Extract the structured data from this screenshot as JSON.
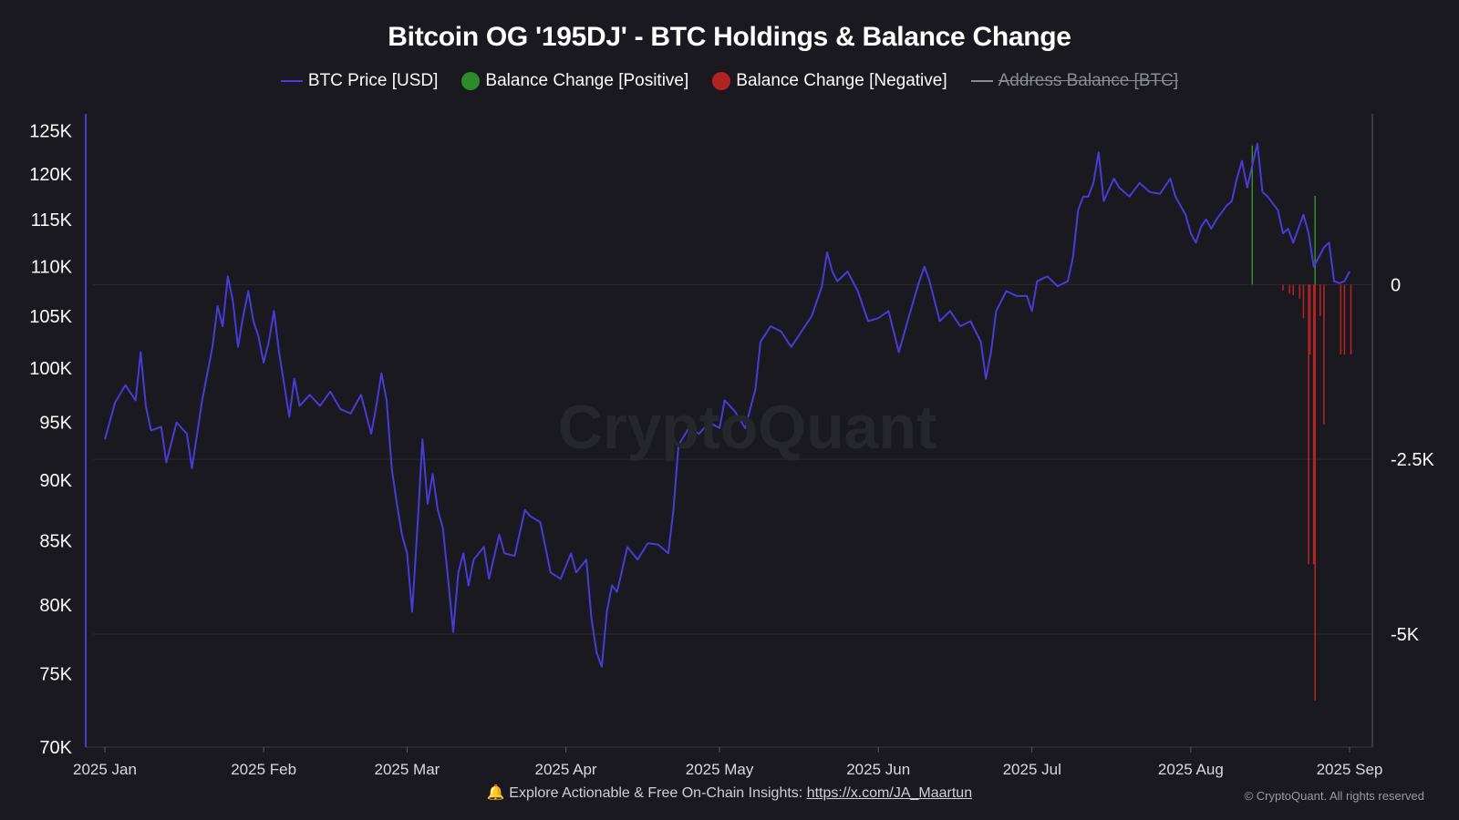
{
  "title": "Bitcoin OG '195DJ' - BTC Holdings & Balance Change",
  "legend": [
    {
      "label": "BTC Price [USD]",
      "marker": "line",
      "color": "#4a3bd6",
      "enabled": true
    },
    {
      "label": "Balance Change [Positive]",
      "marker": "dot",
      "color": "#2f8a2a",
      "enabled": true
    },
    {
      "label": "Balance Change [Negative]",
      "marker": "dot",
      "color": "#b22424",
      "enabled": true
    },
    {
      "label": "Address Balance [BTC]",
      "marker": "line",
      "color": "#8a8a93",
      "enabled": false
    }
  ],
  "watermark": "CryptoQuant",
  "footer": {
    "icon": "bell-icon",
    "text": "Explore Actionable & Free On-Chain Insights:",
    "link": "https://x.com/JA_Maartun"
  },
  "copyright": "© CryptoQuant. All rights reserved",
  "chart_data": {
    "type": "line",
    "left_axis": {
      "scale": "log",
      "range": [
        70000,
        127000
      ],
      "ticks": [
        70000,
        75000,
        80000,
        85000,
        90000,
        95000,
        100000,
        105000,
        110000,
        115000,
        120000,
        125000
      ],
      "tick_labels": [
        "70K",
        "75K",
        "80K",
        "85K",
        "90K",
        "95K",
        "100K",
        "105K",
        "110K",
        "115K",
        "120K",
        "125K"
      ]
    },
    "right_axis": {
      "range": [
        -6200,
        2000
      ],
      "ticks": [
        0,
        -2500,
        -5000
      ],
      "tick_labels": [
        "0",
        "-2.5K",
        "-5K"
      ]
    },
    "x_axis": {
      "range": [
        "2025-01-01",
        "2025-09-01"
      ],
      "ticks": [
        "2025-01-01",
        "2025-02-01",
        "2025-03-01",
        "2025-04-01",
        "2025-05-01",
        "2025-06-01",
        "2025-07-01",
        "2025-08-01",
        "2025-09-01"
      ],
      "tick_labels": [
        "2025 Jan",
        "2025 Feb",
        "2025 Mar",
        "2025 Apr",
        "2025 May",
        "2025 Jun",
        "2025 Jul",
        "2025 Aug",
        "2025 Sep"
      ]
    },
    "grid": true,
    "series": [
      {
        "name": "BTC Price [USD]",
        "axis": "left",
        "color": "#4a3bd6",
        "points": [
          [
            "2025-01-01",
            93500
          ],
          [
            "2025-01-03",
            96800
          ],
          [
            "2025-01-05",
            98400
          ],
          [
            "2025-01-07",
            97000
          ],
          [
            "2025-01-08",
            101500
          ],
          [
            "2025-01-09",
            96500
          ],
          [
            "2025-01-10",
            94300
          ],
          [
            "2025-01-12",
            94600
          ],
          [
            "2025-01-13",
            91500
          ],
          [
            "2025-01-15",
            95000
          ],
          [
            "2025-01-17",
            94000
          ],
          [
            "2025-01-18",
            91000
          ],
          [
            "2025-01-20",
            97000
          ],
          [
            "2025-01-22",
            102000
          ],
          [
            "2025-01-23",
            106000
          ],
          [
            "2025-01-24",
            104000
          ],
          [
            "2025-01-25",
            109000
          ],
          [
            "2025-01-26",
            106500
          ],
          [
            "2025-01-27",
            102000
          ],
          [
            "2025-01-28",
            105000
          ],
          [
            "2025-01-29",
            107500
          ],
          [
            "2025-01-30",
            104500
          ],
          [
            "2025-01-31",
            103000
          ],
          [
            "2025-02-01",
            100500
          ],
          [
            "2025-02-02",
            102500
          ],
          [
            "2025-02-03",
            105500
          ],
          [
            "2025-02-04",
            101500
          ],
          [
            "2025-02-05",
            98500
          ],
          [
            "2025-02-06",
            95500
          ],
          [
            "2025-02-07",
            99000
          ],
          [
            "2025-02-08",
            96500
          ],
          [
            "2025-02-10",
            97500
          ],
          [
            "2025-02-12",
            96500
          ],
          [
            "2025-02-14",
            97800
          ],
          [
            "2025-02-16",
            96200
          ],
          [
            "2025-02-18",
            95800
          ],
          [
            "2025-02-20",
            97500
          ],
          [
            "2025-02-22",
            94000
          ],
          [
            "2025-02-23",
            96500
          ],
          [
            "2025-02-24",
            99500
          ],
          [
            "2025-02-25",
            97000
          ],
          [
            "2025-02-26",
            91000
          ],
          [
            "2025-02-27",
            88000
          ],
          [
            "2025-02-28",
            85500
          ],
          [
            "2025-03-01",
            84000
          ],
          [
            "2025-03-02",
            79500
          ],
          [
            "2025-03-03",
            86000
          ],
          [
            "2025-03-04",
            93500
          ],
          [
            "2025-03-05",
            88000
          ],
          [
            "2025-03-06",
            90500
          ],
          [
            "2025-03-07",
            87500
          ],
          [
            "2025-03-08",
            86000
          ],
          [
            "2025-03-09",
            82000
          ],
          [
            "2025-03-10",
            78000
          ],
          [
            "2025-03-11",
            82500
          ],
          [
            "2025-03-12",
            84000
          ],
          [
            "2025-03-13",
            81500
          ],
          [
            "2025-03-14",
            83500
          ],
          [
            "2025-03-16",
            84500
          ],
          [
            "2025-03-17",
            82000
          ],
          [
            "2025-03-19",
            85500
          ],
          [
            "2025-03-20",
            84000
          ],
          [
            "2025-03-22",
            83800
          ],
          [
            "2025-03-24",
            87500
          ],
          [
            "2025-03-25",
            87000
          ],
          [
            "2025-03-27",
            86500
          ],
          [
            "2025-03-28",
            84500
          ],
          [
            "2025-03-29",
            82500
          ],
          [
            "2025-03-31",
            82000
          ],
          [
            "2025-04-02",
            84000
          ],
          [
            "2025-04-03",
            82500
          ],
          [
            "2025-04-05",
            83500
          ],
          [
            "2025-04-06",
            79000
          ],
          [
            "2025-04-07",
            76500
          ],
          [
            "2025-04-08",
            75500
          ],
          [
            "2025-04-09",
            79500
          ],
          [
            "2025-04-10",
            81500
          ],
          [
            "2025-04-11",
            81000
          ],
          [
            "2025-04-13",
            84500
          ],
          [
            "2025-04-15",
            83500
          ],
          [
            "2025-04-17",
            84800
          ],
          [
            "2025-04-19",
            84700
          ],
          [
            "2025-04-21",
            84000
          ],
          [
            "2025-04-22",
            87500
          ],
          [
            "2025-04-23",
            93000
          ],
          [
            "2025-04-25",
            94500
          ],
          [
            "2025-04-27",
            94000
          ],
          [
            "2025-04-29",
            95000
          ],
          [
            "2025-05-01",
            94500
          ],
          [
            "2025-05-02",
            97000
          ],
          [
            "2025-05-04",
            96000
          ],
          [
            "2025-05-06",
            94500
          ],
          [
            "2025-05-08",
            98000
          ],
          [
            "2025-05-09",
            102500
          ],
          [
            "2025-05-11",
            104000
          ],
          [
            "2025-05-13",
            103500
          ],
          [
            "2025-05-15",
            102000
          ],
          [
            "2025-05-17",
            103500
          ],
          [
            "2025-05-19",
            105000
          ],
          [
            "2025-05-21",
            108000
          ],
          [
            "2025-05-22",
            111500
          ],
          [
            "2025-05-23",
            109500
          ],
          [
            "2025-05-24",
            108500
          ],
          [
            "2025-05-26",
            109500
          ],
          [
            "2025-05-28",
            107500
          ],
          [
            "2025-05-30",
            104500
          ],
          [
            "2025-06-01",
            104800
          ],
          [
            "2025-06-03",
            105500
          ],
          [
            "2025-06-05",
            101500
          ],
          [
            "2025-06-07",
            105000
          ],
          [
            "2025-06-09",
            108500
          ],
          [
            "2025-06-10",
            110000
          ],
          [
            "2025-06-11",
            108500
          ],
          [
            "2025-06-13",
            104500
          ],
          [
            "2025-06-15",
            105500
          ],
          [
            "2025-06-17",
            104000
          ],
          [
            "2025-06-19",
            104500
          ],
          [
            "2025-06-21",
            102500
          ],
          [
            "2025-06-22",
            99000
          ],
          [
            "2025-06-23",
            101500
          ],
          [
            "2025-06-24",
            105500
          ],
          [
            "2025-06-26",
            107500
          ],
          [
            "2025-06-28",
            107000
          ],
          [
            "2025-06-30",
            107000
          ],
          [
            "2025-07-01",
            105500
          ],
          [
            "2025-07-02",
            108500
          ],
          [
            "2025-07-04",
            109000
          ],
          [
            "2025-07-06",
            108000
          ],
          [
            "2025-07-08",
            108500
          ],
          [
            "2025-07-09",
            111000
          ],
          [
            "2025-07-10",
            116000
          ],
          [
            "2025-07-11",
            117500
          ],
          [
            "2025-07-12",
            117500
          ],
          [
            "2025-07-13",
            119000
          ],
          [
            "2025-07-14",
            122500
          ],
          [
            "2025-07-15",
            117000
          ],
          [
            "2025-07-17",
            119500
          ],
          [
            "2025-07-18",
            118500
          ],
          [
            "2025-07-20",
            117500
          ],
          [
            "2025-07-22",
            119000
          ],
          [
            "2025-07-24",
            118000
          ],
          [
            "2025-07-26",
            117800
          ],
          [
            "2025-07-28",
            119500
          ],
          [
            "2025-07-29",
            117500
          ],
          [
            "2025-07-31",
            115500
          ],
          [
            "2025-08-01",
            113500
          ],
          [
            "2025-08-02",
            112500
          ],
          [
            "2025-08-03",
            114200
          ],
          [
            "2025-08-04",
            115000
          ],
          [
            "2025-08-05",
            114000
          ],
          [
            "2025-08-06",
            115000
          ],
          [
            "2025-08-08",
            116500
          ],
          [
            "2025-08-09",
            117000
          ],
          [
            "2025-08-10",
            119500
          ],
          [
            "2025-08-11",
            121500
          ],
          [
            "2025-08-12",
            118500
          ],
          [
            "2025-08-13",
            121000
          ],
          [
            "2025-08-14",
            123500
          ],
          [
            "2025-08-15",
            118000
          ],
          [
            "2025-08-16",
            117500
          ],
          [
            "2025-08-18",
            116000
          ],
          [
            "2025-08-19",
            113500
          ],
          [
            "2025-08-20",
            114000
          ],
          [
            "2025-08-21",
            112500
          ],
          [
            "2025-08-23",
            115500
          ],
          [
            "2025-08-24",
            113500
          ],
          [
            "2025-08-25",
            110000
          ],
          [
            "2025-08-26",
            111000
          ],
          [
            "2025-08-27",
            112000
          ],
          [
            "2025-08-28",
            112500
          ],
          [
            "2025-08-29",
            108500
          ],
          [
            "2025-08-30",
            108300
          ],
          [
            "2025-08-31",
            108500
          ],
          [
            "2025-09-01",
            109500
          ]
        ]
      },
      {
        "name": "Balance Change [Positive]",
        "axis": "right",
        "color": "#2f8a2a",
        "bars": [
          [
            "2025-08-13",
            1990
          ],
          [
            "2025-08-25",
            1270
          ]
        ]
      },
      {
        "name": "Balance Change [Negative]",
        "axis": "right",
        "color": "#b22424",
        "bars": [
          [
            "2025-08-19",
            -80
          ],
          [
            "2025-08-20",
            -130
          ],
          [
            "2025-08-21",
            -150
          ],
          [
            "2025-08-22",
            -200
          ],
          [
            "2025-08-23",
            -480
          ],
          [
            "2025-08-24",
            -1000
          ],
          [
            "2025-08-24",
            -4000
          ],
          [
            "2025-08-25",
            -5950
          ],
          [
            "2025-08-25",
            -4000
          ],
          [
            "2025-08-26",
            -450
          ],
          [
            "2025-08-27",
            -2000
          ],
          [
            "2025-08-30",
            -1000
          ],
          [
            "2025-08-31",
            -1000
          ],
          [
            "2025-09-01",
            -1000
          ]
        ]
      }
    ]
  }
}
